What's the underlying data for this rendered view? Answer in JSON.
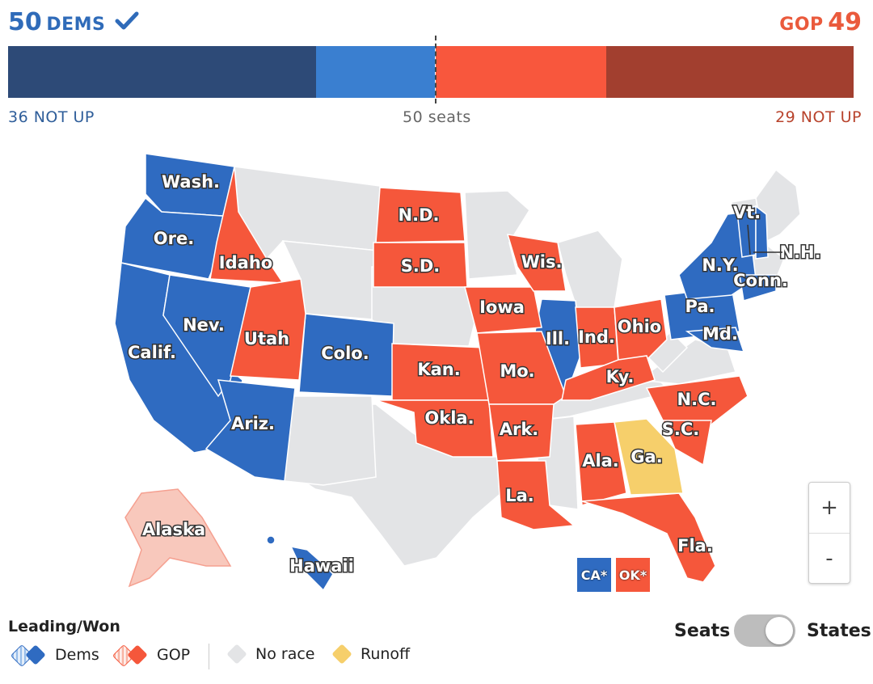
{
  "header": {
    "dem_count": "50",
    "dem_label": "DEMS",
    "gop_label": "GOP",
    "gop_count": "49"
  },
  "seat_bar": {
    "segments": [
      {
        "name": "dem-not-up",
        "seats": 36,
        "color": "#2d4a77"
      },
      {
        "name": "dem-won",
        "seats": 14,
        "color": "#3a7fd0"
      },
      {
        "name": "gop-won",
        "seats": 20,
        "color": "#f8573d"
      },
      {
        "name": "gop-not-up",
        "seats": 29,
        "color": "#a23f2f"
      }
    ],
    "total": 100,
    "dem_not_up_label": "36 NOT UP",
    "midpoint_label": "50 seats",
    "gop_not_up_label": "29 NOT UP"
  },
  "map": {
    "colors": {
      "dem": "#2f6bc1",
      "gop": "#f5573b",
      "no_race": "#e3e4e6",
      "runoff": "#f6cf6b"
    },
    "labels": {
      "wash": "Wash.",
      "ore": "Ore.",
      "calif": "Calif.",
      "nev": "Nev.",
      "idaho": "Idaho",
      "utah": "Utah",
      "ariz": "Ariz.",
      "colo": "Colo.",
      "nd": "N.D.",
      "sd": "S.D.",
      "kan": "Kan.",
      "okla": "Okla.",
      "iowa": "Iowa",
      "mo": "Mo.",
      "ark": "Ark.",
      "la": "La.",
      "wis": "Wis.",
      "ill": "Ill.",
      "ind": "Ind.",
      "ohio": "Ohio",
      "ky": "Ky.",
      "ala": "Ala.",
      "ga": "Ga.",
      "fla": "Fla.",
      "nc": "N.C.",
      "sc": "S.C.",
      "pa": "Pa.",
      "md": "Md.",
      "ny": "N.Y.",
      "conn": "Conn.",
      "vt": "Vt.",
      "nh": "N.H.",
      "alaska": "Alaska",
      "hawaii": "Hawaii"
    },
    "special_badges": {
      "ca": "CA*",
      "ok": "OK*"
    }
  },
  "zoom": {
    "in": "+",
    "out": "-"
  },
  "legend": {
    "title": "Leading/Won",
    "dems": "Dems",
    "gop": "GOP",
    "no_race": "No race",
    "runoff": "Runoff"
  },
  "toggle": {
    "left": "Seats",
    "right": "States",
    "selected": "States"
  }
}
